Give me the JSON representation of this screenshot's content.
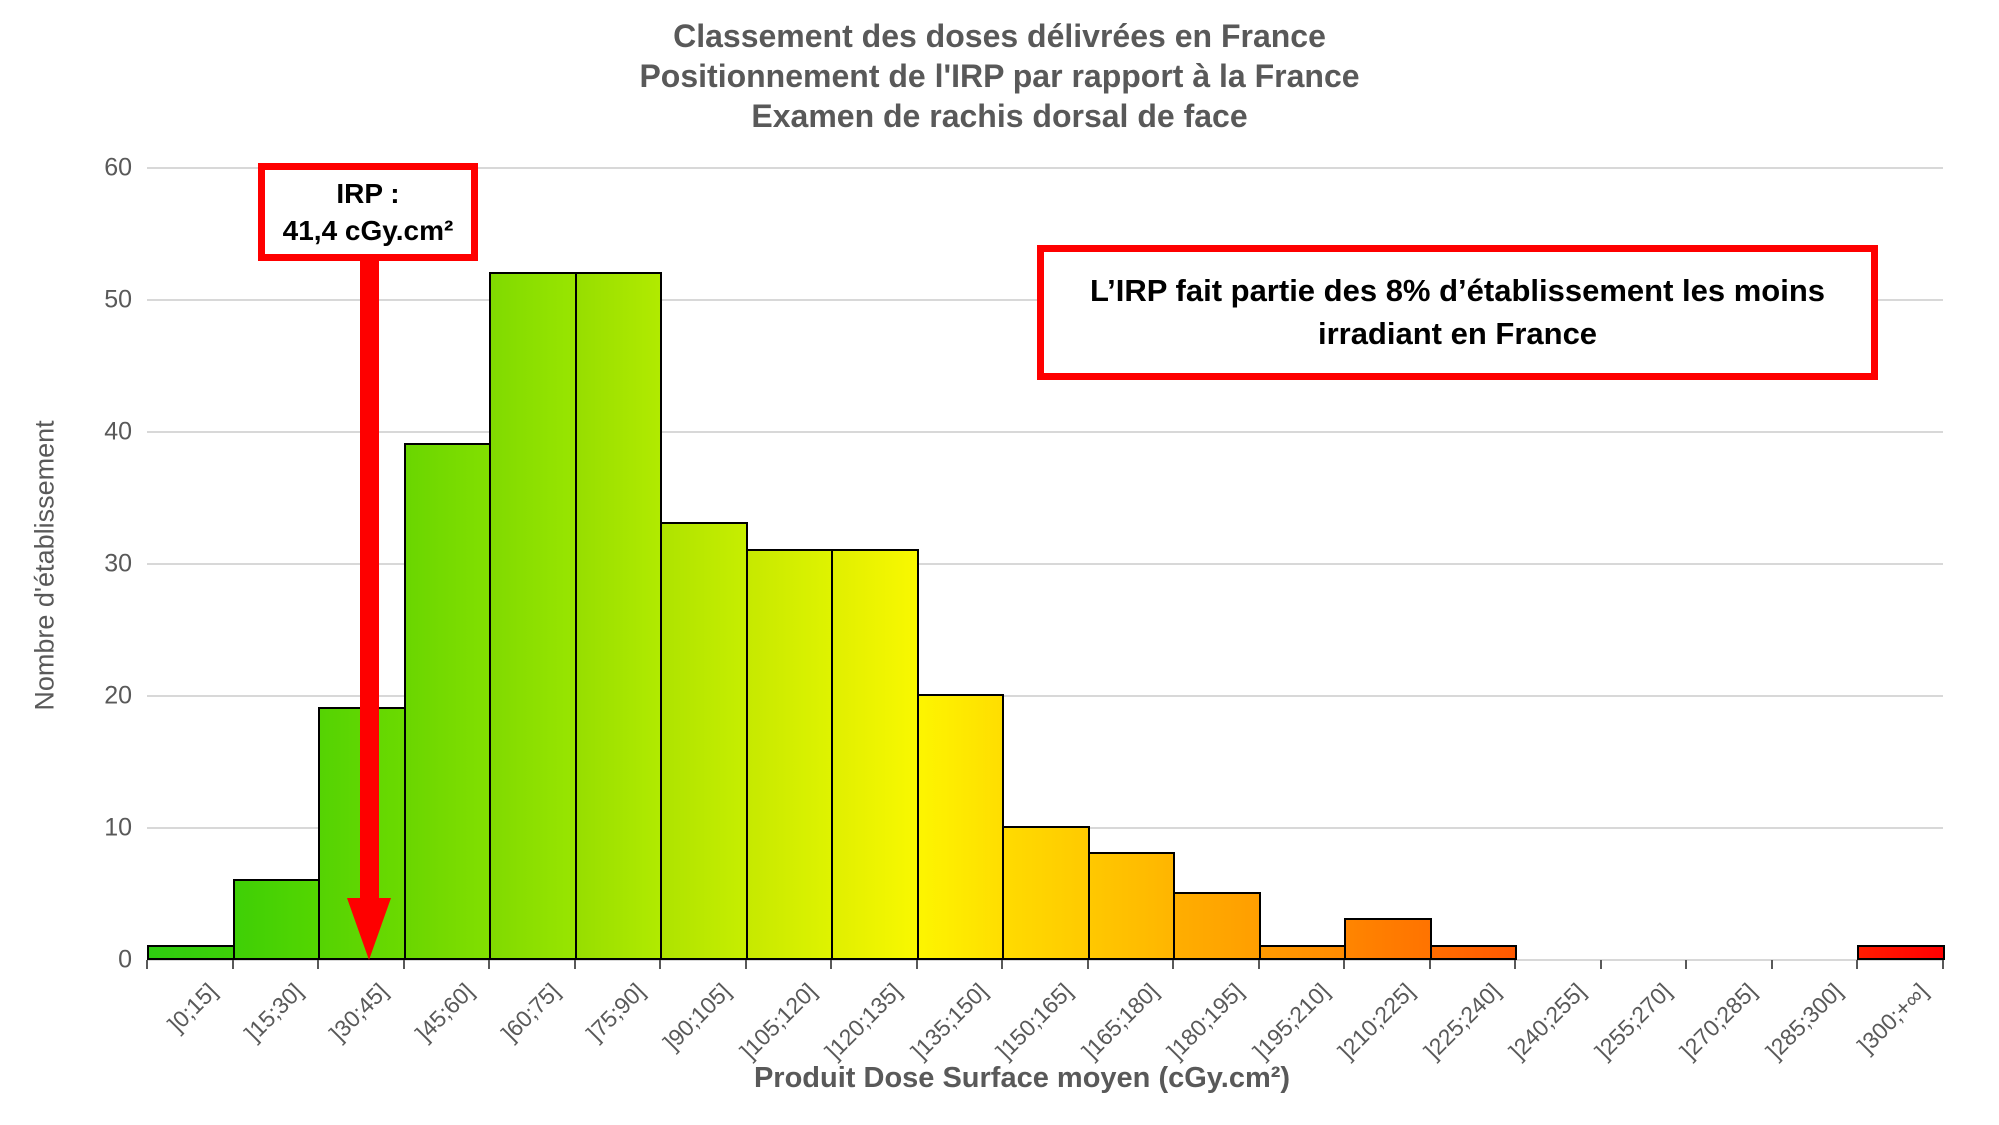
{
  "title": {
    "line1": "Classement des doses délivrées en France",
    "line2": "Positionnement de l'IRP par rapport à la France",
    "line3": "Examen de rachis dorsal de face"
  },
  "chart_data": {
    "type": "bar",
    "title": "Classement des doses délivrées en France — Positionnement de l'IRP par rapport à la France — Examen de rachis dorsal de face",
    "xlabel": "Produit Dose Surface moyen (cGy.cm²)",
    "ylabel": "Nombre d'établissement",
    "ylim": [
      0,
      60
    ],
    "yticks": [
      0,
      10,
      20,
      30,
      40,
      50,
      60
    ],
    "grid": true,
    "legend": "none",
    "categories": [
      "]0;15]",
      "]15;30]",
      "]30;45]",
      "]45;60]",
      "]60;75]",
      "]75;90]",
      "]90;105]",
      "]105;120]",
      "]120;135]",
      "]135;150]",
      "]150;165]",
      "]165;180]",
      "]180;195]",
      "]195;210]",
      "]210;225]",
      "]225;240]",
      "]240;255]",
      "]255;270]",
      "]270;285]",
      "]285;300]",
      "]300;+∞]"
    ],
    "values": [
      1,
      6,
      19,
      39,
      52,
      52,
      33,
      31,
      31,
      20,
      10,
      8,
      5,
      1,
      3,
      1,
      0,
      0,
      0,
      0,
      1
    ],
    "bar_colors": [
      {
        "from": "#2ECC10",
        "to": "#3DD108"
      },
      {
        "from": "#3FCF06",
        "to": "#54D600"
      },
      {
        "from": "#55D303",
        "to": "#6BDA00"
      },
      {
        "from": "#6AD600",
        "to": "#82DF00"
      },
      {
        "from": "#80DA00",
        "to": "#99E500"
      },
      {
        "from": "#97DE00",
        "to": "#B1EA00"
      },
      {
        "from": "#AEE300",
        "to": "#C7EE00"
      },
      {
        "from": "#C6E900",
        "to": "#DFF300"
      },
      {
        "from": "#E0EF00",
        "to": "#F9F800"
      },
      {
        "from": "#FDF500",
        "to": "#FFDE00"
      },
      {
        "from": "#FFDB00",
        "to": "#FFCA00"
      },
      {
        "from": "#FFC800",
        "to": "#FFB500"
      },
      {
        "from": "#FFAE00",
        "to": "#FF9E00"
      },
      {
        "from": "#FF9A00",
        "to": "#FF8B00"
      },
      {
        "from": "#FF8500",
        "to": "#FF7300"
      },
      {
        "from": "#FF6D00",
        "to": "#FF5900"
      },
      {
        "from": "#FFFFFF",
        "to": "#FFFFFF"
      },
      {
        "from": "#FFFFFF",
        "to": "#FFFFFF"
      },
      {
        "from": "#FFFFFF",
        "to": "#FFFFFF"
      },
      {
        "from": "#FFFFFF",
        "to": "#FFFFFF"
      },
      {
        "from": "#FF1C00",
        "to": "#FF0000"
      }
    ]
  },
  "annotations": {
    "irp_label": {
      "line1": "IRP :",
      "line2": "41,4 cGy.cm²",
      "value": 41.4,
      "border_color": "#FE0000",
      "arrow_color": "#FE0000"
    },
    "info_box": {
      "line1": "L’IRP fait partie des 8% d’établissement les moins",
      "line2": "irradiant en France",
      "border_color": "#FE0000"
    }
  },
  "colors": {
    "axis_text": "#595959",
    "title_text": "#595959",
    "gridline": "#D8D8D8",
    "bar_border": "#000000",
    "background": "#FFFFFF"
  }
}
